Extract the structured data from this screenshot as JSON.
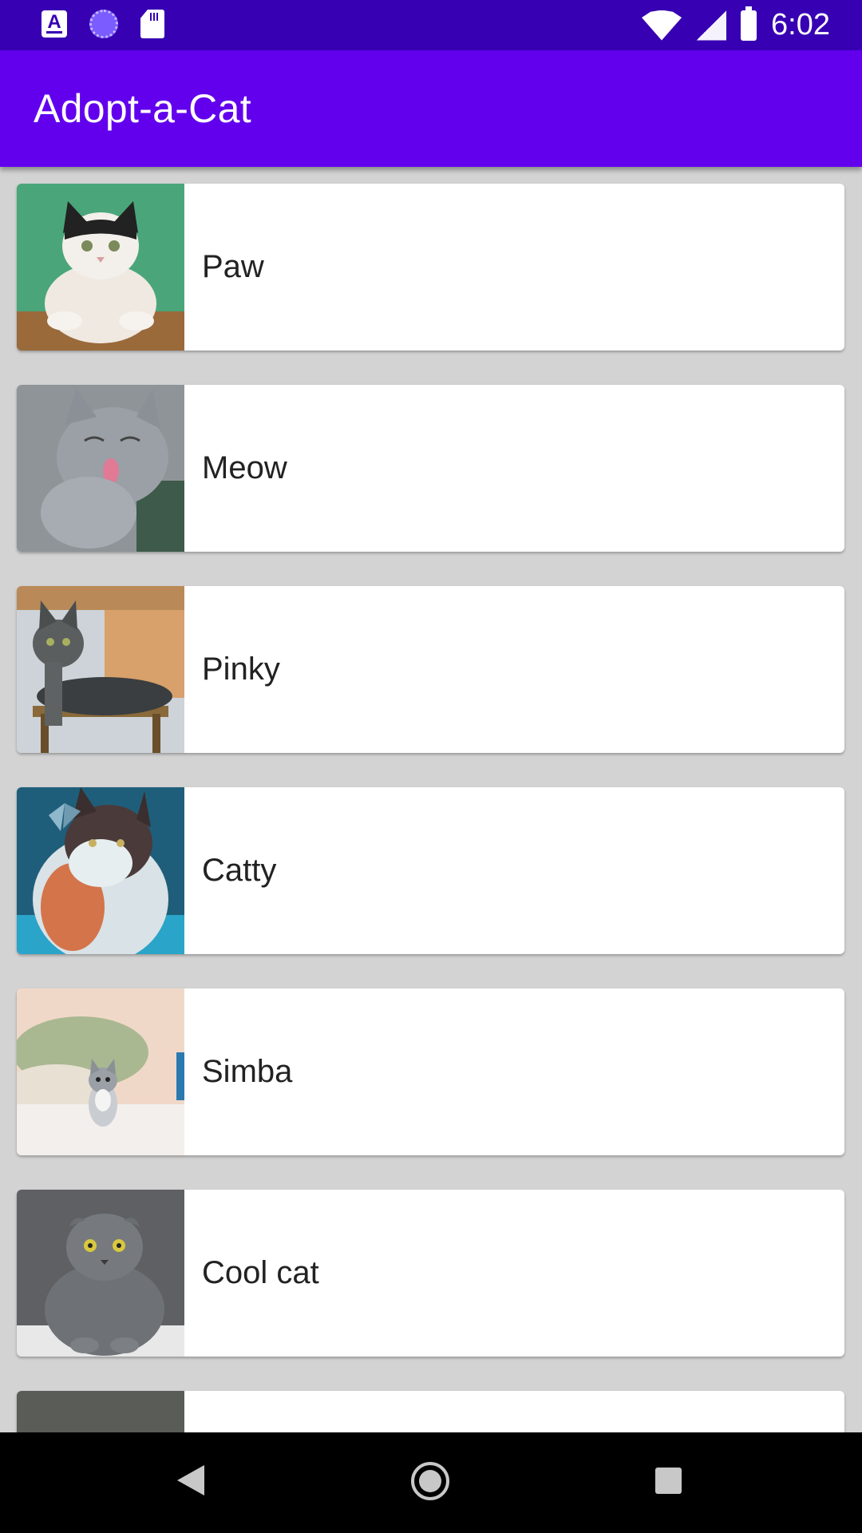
{
  "status_bar": {
    "time": "6:02",
    "icons": [
      "keyboard-a-icon",
      "sync-circle-icon",
      "sd-card-icon",
      "wifi-icon",
      "signal-icon",
      "battery-icon"
    ]
  },
  "app_bar": {
    "title": "Adopt-a-Cat",
    "color": "#6200ee"
  },
  "status_bar_color": "#3700b3",
  "cats": [
    {
      "name": "Paw"
    },
    {
      "name": "Meow"
    },
    {
      "name": "Pinky"
    },
    {
      "name": "Catty"
    },
    {
      "name": "Simba"
    },
    {
      "name": "Cool cat"
    },
    {
      "name": ""
    }
  ],
  "nav_bar": {
    "icons": [
      "back-icon",
      "home-icon",
      "recents-icon"
    ]
  }
}
